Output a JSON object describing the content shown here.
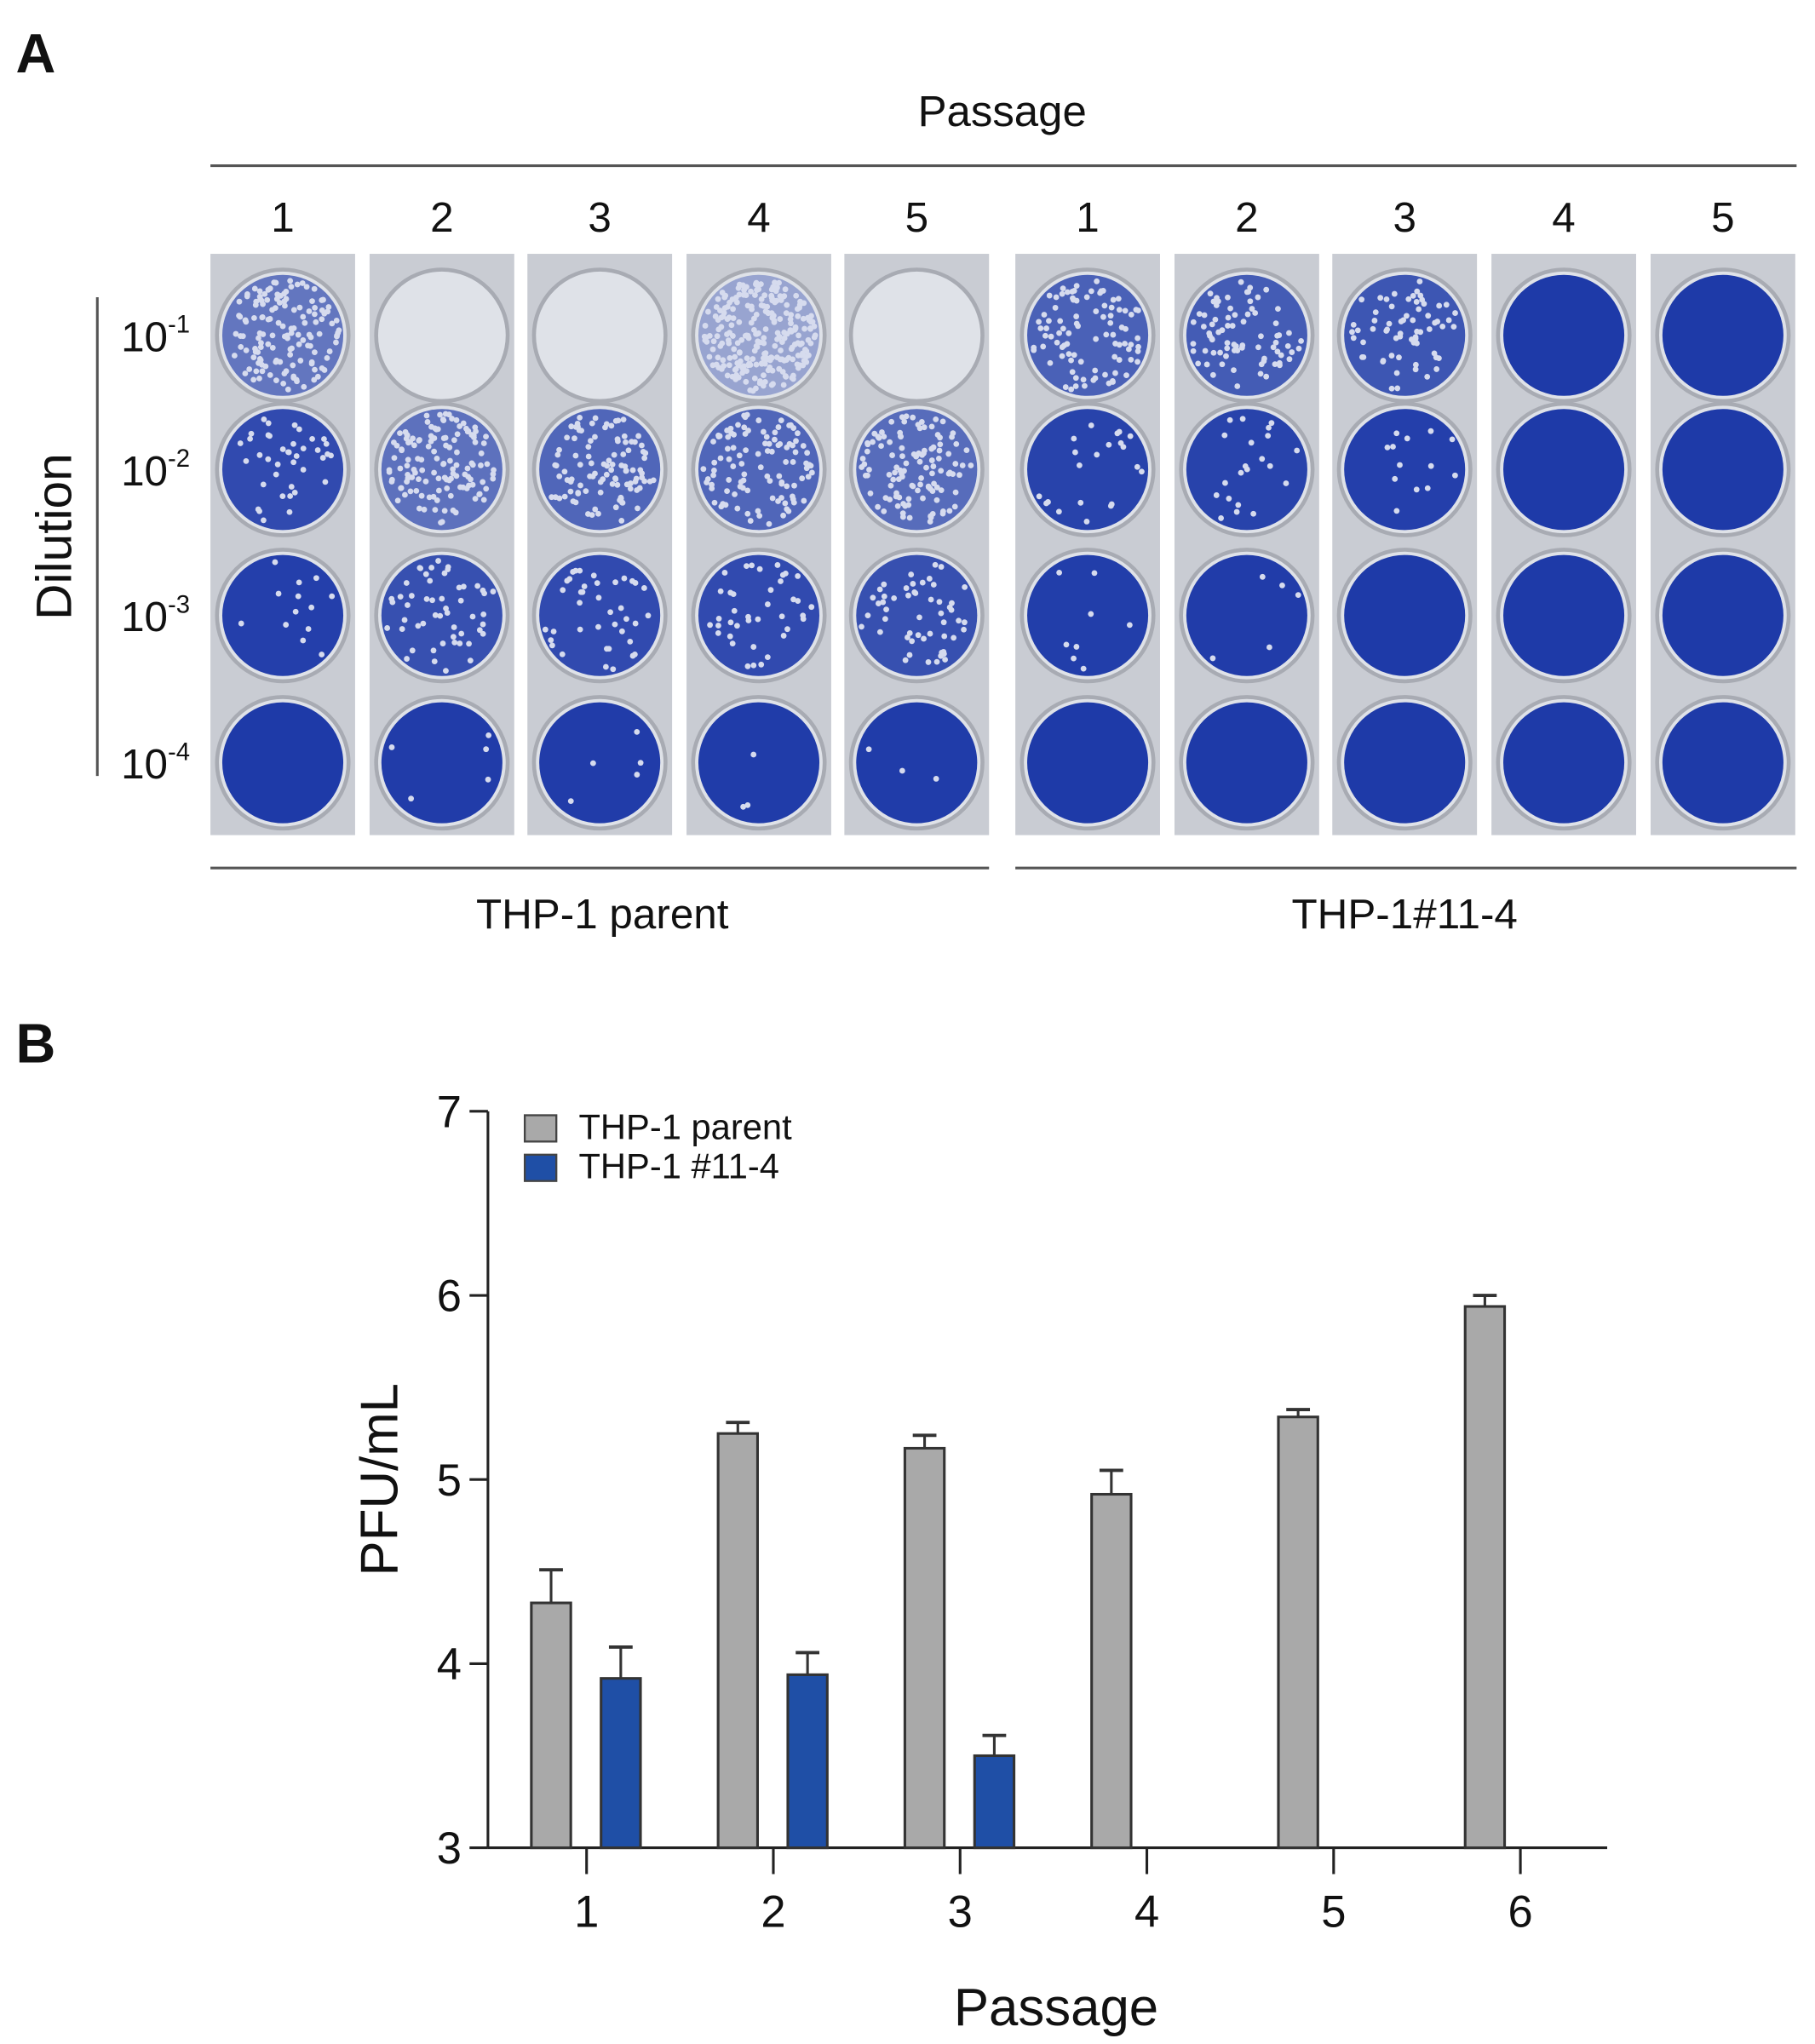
{
  "panel_a": {
    "label": "A",
    "top_title": "Passage",
    "passages": [
      "1",
      "2",
      "3",
      "4",
      "5",
      "1",
      "2",
      "3",
      "4",
      "5"
    ],
    "dilution_label": "Dilution",
    "dilutions": [
      {
        "base": "10",
        "exp": "-1"
      },
      {
        "base": "10",
        "exp": "-2"
      },
      {
        "base": "10",
        "exp": "-3"
      },
      {
        "base": "10",
        "exp": "-4"
      }
    ],
    "groups": [
      "THP-1 parent",
      "THP-1#11-4"
    ],
    "colors": {
      "stain": "#1e3aa8",
      "plate": "#c9ccd3"
    },
    "stain_coverage_by_column": [
      [
        0.45,
        0.85,
        0.95,
        1.0
      ],
      [
        0.0,
        0.5,
        0.8,
        0.98
      ],
      [
        0.0,
        0.6,
        0.85,
        0.98
      ],
      [
        0.02,
        0.6,
        0.85,
        0.99
      ],
      [
        0.0,
        0.55,
        0.8,
        0.99
      ],
      [
        0.65,
        0.92,
        0.97,
        1.0
      ],
      [
        0.7,
        0.92,
        0.98,
        1.0
      ],
      [
        0.75,
        0.95,
        1.0,
        1.0
      ],
      [
        1.0,
        1.0,
        1.0,
        1.0
      ],
      [
        1.0,
        1.0,
        1.0,
        1.0
      ]
    ]
  },
  "panel_b": {
    "label": "B"
  },
  "chart_data": {
    "type": "bar",
    "title": "",
    "xlabel": "Passage",
    "ylabel": "PFU/mL",
    "categories": [
      "1",
      "2",
      "3",
      "4",
      "5",
      "6"
    ],
    "ylim": [
      3,
      7
    ],
    "yticks": [
      3,
      4,
      5,
      6,
      7
    ],
    "grid": false,
    "legend": "top-left",
    "series": [
      {
        "name": "THP-1 parent",
        "color": "#a9a9a9",
        "values": [
          4.33,
          5.25,
          5.17,
          4.92,
          5.34,
          5.94
        ],
        "error_upper": [
          4.51,
          5.31,
          5.24,
          5.05,
          5.38,
          6.0
        ]
      },
      {
        "name": "THP-1 #11-4",
        "color": "#1f4fa6",
        "values": [
          3.92,
          3.94,
          3.5,
          null,
          null,
          null
        ],
        "error_upper": [
          4.09,
          4.06,
          3.61,
          null,
          null,
          null
        ]
      }
    ]
  }
}
